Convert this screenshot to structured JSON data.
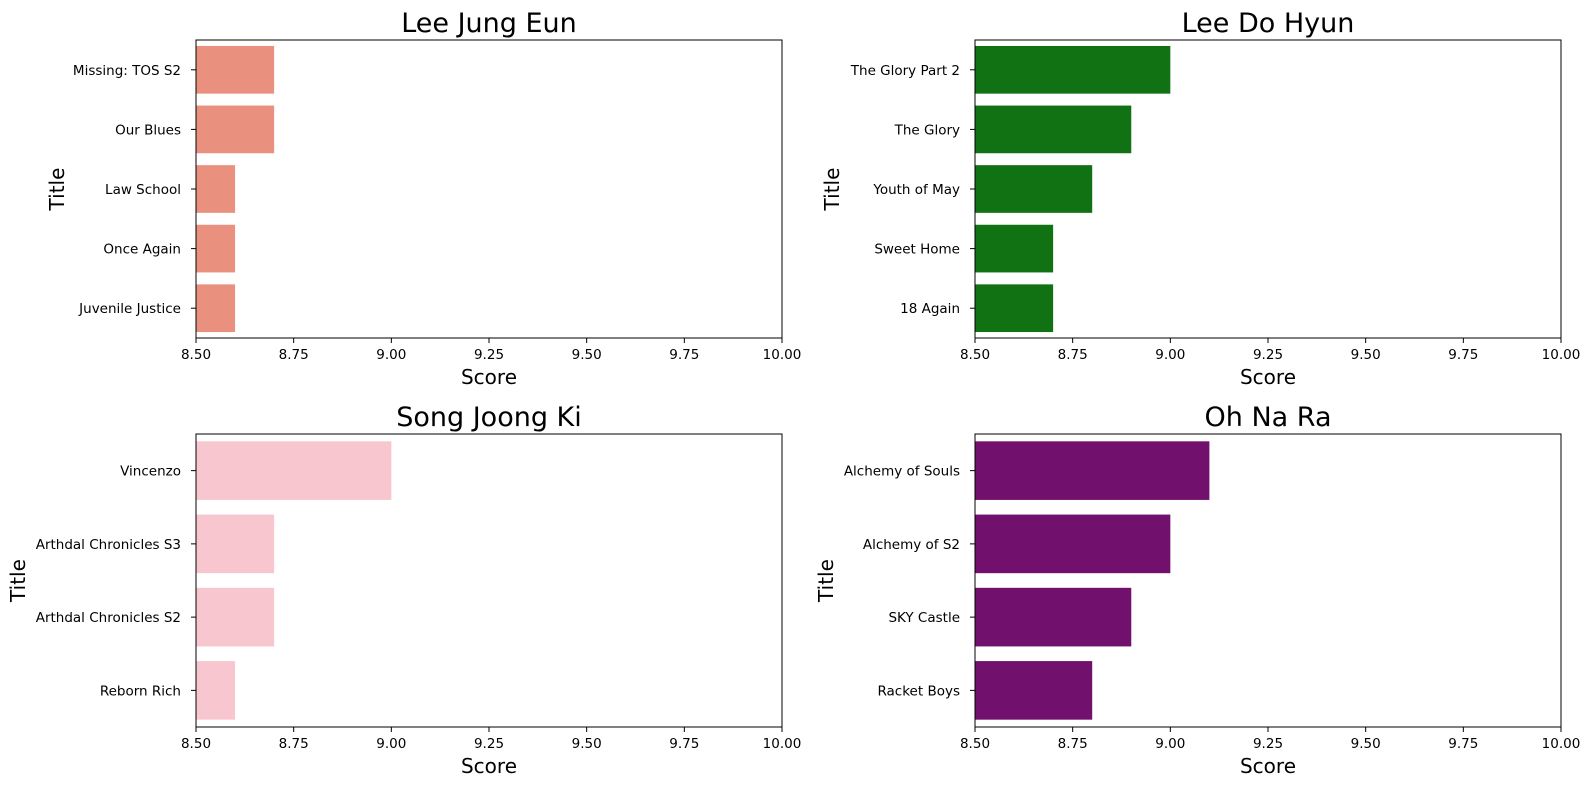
{
  "chart_data": [
    {
      "type": "bar",
      "orientation": "horizontal",
      "title": "Lee Jung Eun",
      "xlabel": "Score",
      "ylabel": "Title",
      "xlim": [
        8.5,
        10.0
      ],
      "x_ticks": [
        "8.50",
        "8.75",
        "9.00",
        "9.25",
        "9.50",
        "9.75",
        "10.00"
      ],
      "categories": [
        "Missing: TOS S2",
        "Our Blues",
        "Law School",
        "Once Again",
        "Juvenile Justice"
      ],
      "values": [
        8.7,
        8.7,
        8.6,
        8.6,
        8.6
      ],
      "color": "#e9907f",
      "grid": false
    },
    {
      "type": "bar",
      "orientation": "horizontal",
      "title": "Lee Do Hyun",
      "xlabel": "Score",
      "ylabel": "Title",
      "xlim": [
        8.5,
        10.0
      ],
      "x_ticks": [
        "8.50",
        "8.75",
        "9.00",
        "9.25",
        "9.50",
        "9.75",
        "10.00"
      ],
      "categories": [
        "The Glory Part 2",
        "The Glory",
        "Youth of May",
        "Sweet Home",
        "18 Again"
      ],
      "values": [
        9.0,
        8.9,
        8.8,
        8.7,
        8.7
      ],
      "color": "#107212",
      "grid": false
    },
    {
      "type": "bar",
      "orientation": "horizontal",
      "title": "Song Joong Ki",
      "xlabel": "Score",
      "ylabel": "Title",
      "xlim": [
        8.5,
        10.0
      ],
      "x_ticks": [
        "8.50",
        "8.75",
        "9.00",
        "9.25",
        "9.50",
        "9.75",
        "10.00"
      ],
      "categories": [
        "Vincenzo",
        "Arthdal Chronicles S3",
        "Arthdal Chronicles S2",
        "Reborn Rich"
      ],
      "values": [
        9.0,
        8.7,
        8.7,
        8.6
      ],
      "color": "#f7c6cf",
      "grid": false
    },
    {
      "type": "bar",
      "orientation": "horizontal",
      "title": "Oh Na Ra",
      "xlabel": "Score",
      "ylabel": "Title",
      "xlim": [
        8.5,
        10.0
      ],
      "x_ticks": [
        "8.50",
        "8.75",
        "9.00",
        "9.25",
        "9.50",
        "9.75",
        "10.00"
      ],
      "categories": [
        "Alchemy of Souls",
        "Alchemy of S2",
        "SKY Castle",
        "Racket Boys"
      ],
      "values": [
        9.1,
        9.0,
        8.9,
        8.8
      ],
      "color": "#72106e",
      "grid": false
    }
  ]
}
